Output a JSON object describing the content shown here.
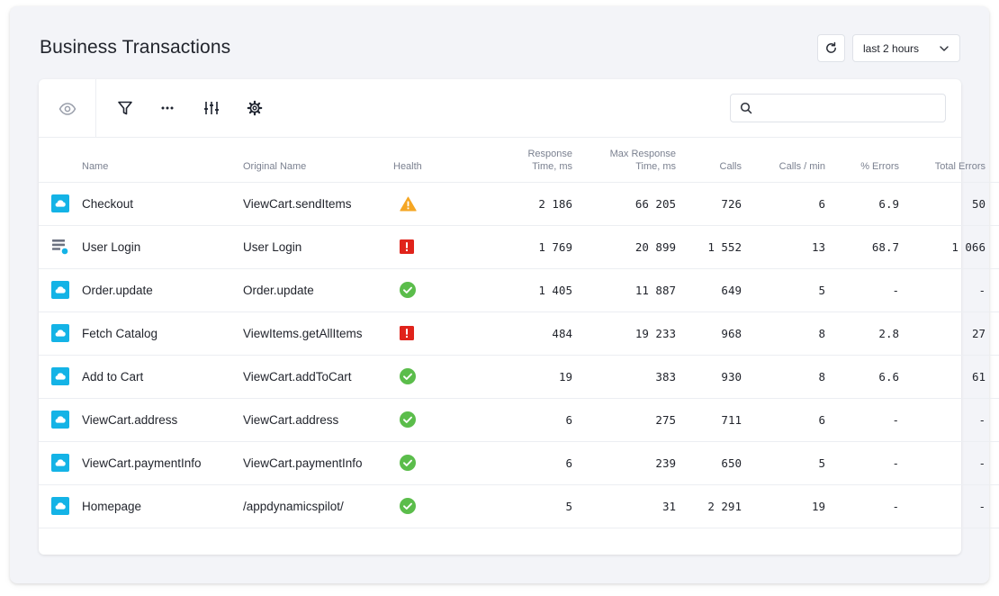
{
  "page": {
    "title": "Business Transactions"
  },
  "controls": {
    "time_range": "last 2 hours"
  },
  "toolbar": {
    "search_placeholder": ""
  },
  "colors": {
    "accent": "#14b3e6",
    "warning": "#f5a623",
    "critical": "#e0231b",
    "normal": "#5bbd4b"
  },
  "table": {
    "headers": {
      "name": "Name",
      "original_name": "Original Name",
      "health": "Health",
      "response_time_1": "Response",
      "response_time_2": "Time, ms",
      "max_response_1": "Max Response",
      "max_response_2": "Time, ms",
      "calls": "Calls",
      "calls_per_min": "Calls / min",
      "pct_errors": "% Errors",
      "total_errors": "Total Errors"
    },
    "rows": [
      {
        "icon": "cloud-icon",
        "name": "Checkout",
        "original_name": "ViewCart.sendItems",
        "health": "warning",
        "response_time": "2 186",
        "max_response_time": "66 205",
        "calls": "726",
        "calls_per_min": "6",
        "pct_errors": "6.9",
        "total_errors": "50"
      },
      {
        "icon": "list-icon",
        "name": "User Login",
        "original_name": "User Login",
        "health": "critical",
        "response_time": "1 769",
        "max_response_time": "20 899",
        "calls": "1 552",
        "calls_per_min": "13",
        "pct_errors": "68.7",
        "total_errors": "1 066"
      },
      {
        "icon": "cloud-icon",
        "name": "Order.update",
        "original_name": "Order.update",
        "health": "normal",
        "response_time": "1 405",
        "max_response_time": "11 887",
        "calls": "649",
        "calls_per_min": "5",
        "pct_errors": "-",
        "total_errors": "-"
      },
      {
        "icon": "cloud-icon",
        "name": "Fetch Catalog",
        "original_name": "ViewItems.getAllItems",
        "health": "critical",
        "response_time": "484",
        "max_response_time": "19 233",
        "calls": "968",
        "calls_per_min": "8",
        "pct_errors": "2.8",
        "total_errors": "27"
      },
      {
        "icon": "cloud-icon",
        "name": "Add to Cart",
        "original_name": "ViewCart.addToCart",
        "health": "normal",
        "response_time": "19",
        "max_response_time": "383",
        "calls": "930",
        "calls_per_min": "8",
        "pct_errors": "6.6",
        "total_errors": "61"
      },
      {
        "icon": "cloud-icon",
        "name": "ViewCart.address",
        "original_name": "ViewCart.address",
        "health": "normal",
        "response_time": "6",
        "max_response_time": "275",
        "calls": "711",
        "calls_per_min": "6",
        "pct_errors": "-",
        "total_errors": "-"
      },
      {
        "icon": "cloud-icon",
        "name": "ViewCart.paymentInfo",
        "original_name": "ViewCart.paymentInfo",
        "health": "normal",
        "response_time": "6",
        "max_response_time": "239",
        "calls": "650",
        "calls_per_min": "5",
        "pct_errors": "-",
        "total_errors": "-"
      },
      {
        "icon": "cloud-icon",
        "name": "Homepage",
        "original_name": "/appdynamicspilot/",
        "health": "normal",
        "response_time": "5",
        "max_response_time": "31",
        "calls": "2 291",
        "calls_per_min": "19",
        "pct_errors": "-",
        "total_errors": "-"
      }
    ]
  }
}
